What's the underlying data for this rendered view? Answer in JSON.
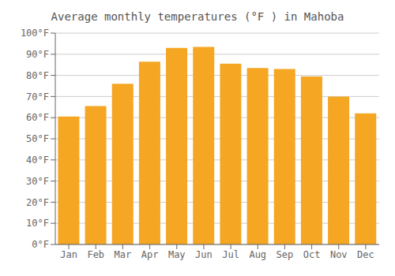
{
  "chart_data": {
    "type": "bar",
    "title": "Average monthly temperatures (°F ) in Mahoba",
    "categories": [
      "Jan",
      "Feb",
      "Mar",
      "Apr",
      "May",
      "Jun",
      "Jul",
      "Aug",
      "Sep",
      "Oct",
      "Nov",
      "Dec"
    ],
    "values": [
      60.5,
      65.5,
      76,
      86.5,
      93,
      93.5,
      85.5,
      83.5,
      83,
      79.5,
      70,
      62
    ],
    "color": "#F5A623",
    "ylim": [
      0,
      100
    ],
    "yticks": [
      {
        "value": 0,
        "label": "0°F"
      },
      {
        "value": 10,
        "label": "10°F"
      },
      {
        "value": 20,
        "label": "20°F"
      },
      {
        "value": 30,
        "label": "30°F"
      },
      {
        "value": 40,
        "label": "40°F"
      },
      {
        "value": 50,
        "label": "50°F"
      },
      {
        "value": 60,
        "label": "60°F"
      },
      {
        "value": 70,
        "label": "70°F"
      },
      {
        "value": 80,
        "label": "80°F"
      },
      {
        "value": 90,
        "label": "90°F"
      },
      {
        "value": 100,
        "label": "100°F"
      }
    ],
    "grid": true
  }
}
